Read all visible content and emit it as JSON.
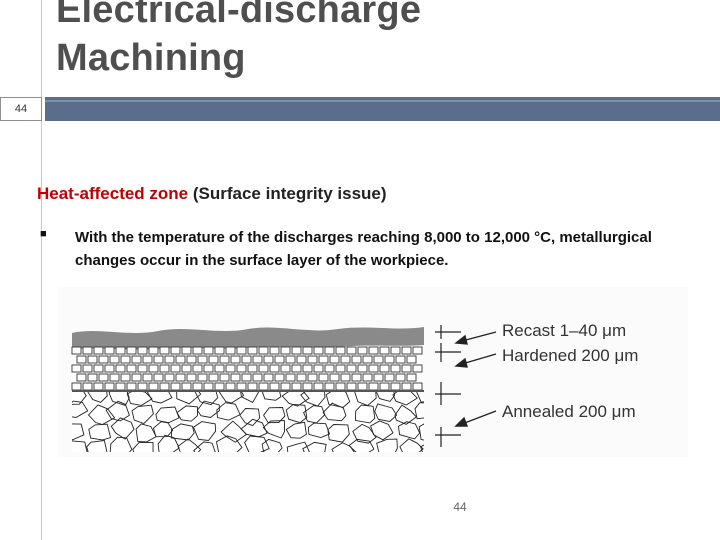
{
  "slide": {
    "title_line1": "Electrical-discharge",
    "title_line2": "Machining",
    "slide_number_box": "44",
    "heading_highlight": "Heat-affected zone",
    "heading_rest": " (Surface integrity issue)",
    "bullet_text": "With the temperature of the discharges reaching 8,000 to 12,000 °C, metallurgical changes occur in the surface layer of the workpiece.",
    "page_number": "44"
  },
  "figure": {
    "labels": {
      "recast": "Recast 1–40 μm",
      "hardened": "Hardened 200 μm",
      "annealed": "Annealed 200 μm"
    }
  },
  "colors": {
    "title_text": "#4f4f4f",
    "title_bar": "#5a6d8a",
    "highlight": "#c00000"
  }
}
